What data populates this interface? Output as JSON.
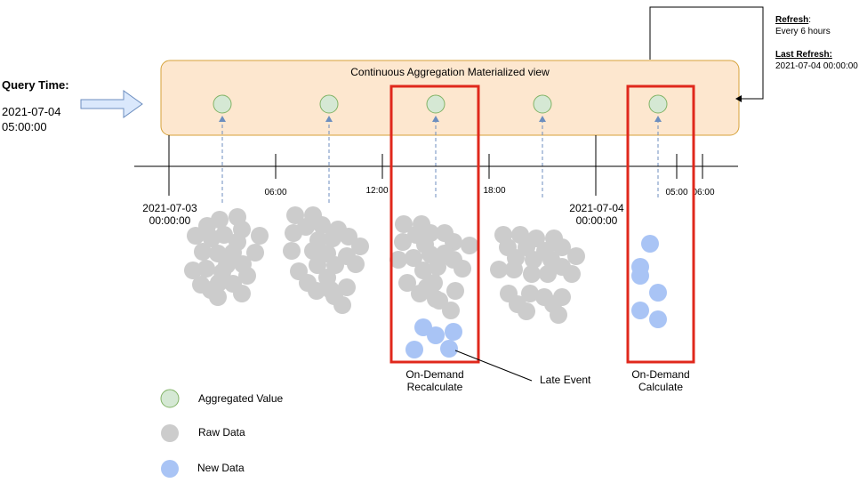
{
  "query": {
    "title": "Query Time:",
    "date": "2021-07-04",
    "time": "05:00:00"
  },
  "view": {
    "title": "Continuous Aggregation Materialized view"
  },
  "refresh": {
    "title": "Refresh",
    "title_colon": ":",
    "interval": "Every 6 hours",
    "last_title": "Last Refresh:",
    "last_value": "2021-07-04 00:00:00"
  },
  "timeline": {
    "day1_date": "2021-07-03",
    "day1_time": "00:00:00",
    "day2_date": "2021-07-04",
    "day2_time": "00:00:00",
    "t0600": "06:00",
    "t1200": "12:00",
    "t1800": "18:00",
    "t0500": "05:00",
    "t0600b": "06:00"
  },
  "annotations": {
    "recalc_line1": "On-Demand",
    "recalc_line2": "Recalculate",
    "calc_line1": "On-Demand",
    "calc_line2": "Calculate",
    "late_event": "Late Event"
  },
  "legend": {
    "aggregated": "Aggregated Value",
    "raw": "Raw Data",
    "new": "New Data"
  },
  "colors": {
    "view_fill": "#fde7cf",
    "view_stroke": "#d6a23a",
    "aggregated_fill": "#d5e8d4",
    "aggregated_stroke": "#82b366",
    "raw": "#cccccc",
    "new": "#a9c4f5",
    "highlight": "#e0281c",
    "arrow_fill": "#dae8fc",
    "arrow_stroke": "#6c8ebf",
    "dashed": "#6c8ebf"
  }
}
